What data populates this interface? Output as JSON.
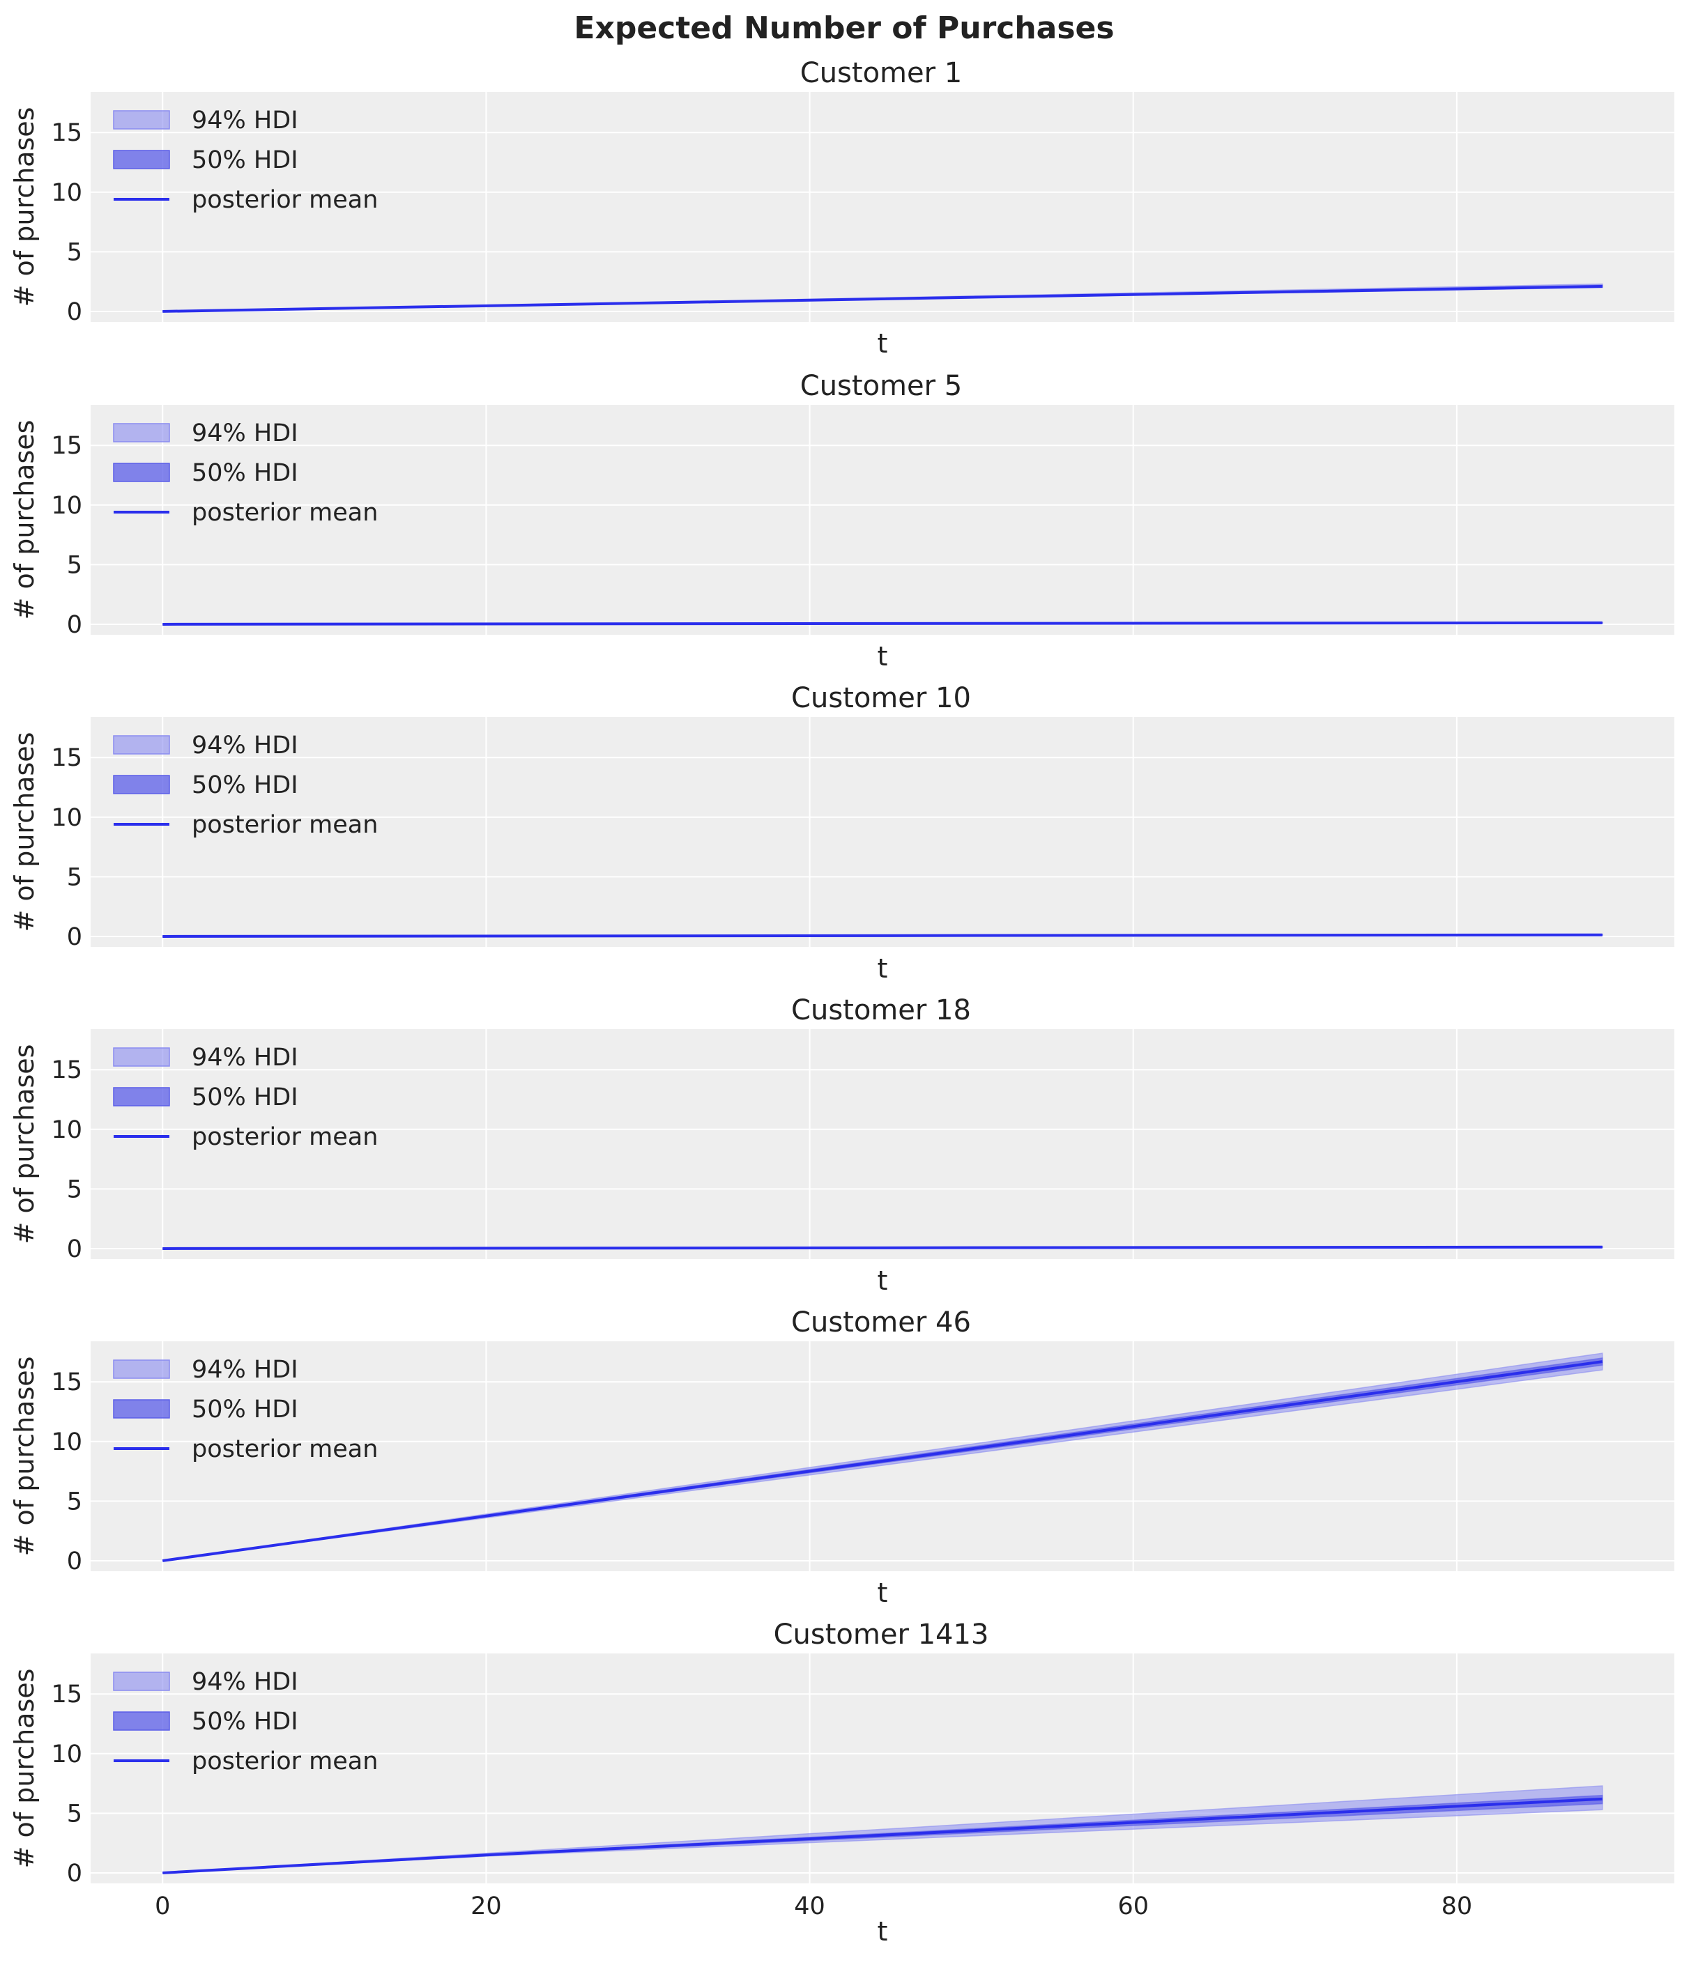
{
  "figure": {
    "title": "Expected Number of Purchases"
  },
  "legend_labels": {
    "hdi94": "94% HDI",
    "hdi50": "50% HDI",
    "mean": "posterior mean"
  },
  "colors": {
    "panel_bg": "#eeeeee",
    "grid": "#ffffff",
    "line": "#2a2eec",
    "band94": "#8a8cf0",
    "band50": "#5b5ee8"
  },
  "chart_data": [
    {
      "type": "line",
      "title": "Customer 1",
      "xlabel": "t",
      "ylabel": "# of purchases",
      "xlim": [
        -4.45,
        93.45
      ],
      "ylim": [
        -0.88,
        18.4
      ],
      "x_ticks": [
        0,
        20,
        40,
        60,
        80
      ],
      "y_ticks": [
        0,
        5,
        10,
        15
      ],
      "show_x_ticklabels": false,
      "legend": "upper left",
      "grid": true,
      "x": [
        0,
        89
      ],
      "mean": [
        0,
        2.1
      ],
      "hdi94": {
        "lower": [
          0,
          2.0
        ],
        "upper": [
          0,
          2.3
        ]
      },
      "hdi50": {
        "lower": [
          0,
          2.05
        ],
        "upper": [
          0,
          2.2
        ]
      }
    },
    {
      "type": "line",
      "title": "Customer 5",
      "xlabel": "t",
      "ylabel": "# of purchases",
      "xlim": [
        -4.45,
        93.45
      ],
      "ylim": [
        -0.88,
        18.4
      ],
      "x_ticks": [
        0,
        20,
        40,
        60,
        80
      ],
      "y_ticks": [
        0,
        5,
        10,
        15
      ],
      "show_x_ticklabels": false,
      "legend": "upper left",
      "grid": true,
      "x": [
        0,
        89
      ],
      "mean": [
        0,
        0.12
      ],
      "hdi94": {
        "lower": [
          0,
          0.1
        ],
        "upper": [
          0,
          0.15
        ]
      },
      "hdi50": {
        "lower": [
          0,
          0.11
        ],
        "upper": [
          0,
          0.13
        ]
      }
    },
    {
      "type": "line",
      "title": "Customer 10",
      "xlabel": "t",
      "ylabel": "# of purchases",
      "xlim": [
        -4.45,
        93.45
      ],
      "ylim": [
        -0.88,
        18.4
      ],
      "x_ticks": [
        0,
        20,
        40,
        60,
        80
      ],
      "y_ticks": [
        0,
        5,
        10,
        15
      ],
      "show_x_ticklabels": false,
      "legend": "upper left",
      "grid": true,
      "x": [
        0,
        89
      ],
      "mean": [
        0,
        0.13
      ],
      "hdi94": {
        "lower": [
          0,
          0.11
        ],
        "upper": [
          0,
          0.16
        ]
      },
      "hdi50": {
        "lower": [
          0,
          0.12
        ],
        "upper": [
          0,
          0.14
        ]
      }
    },
    {
      "type": "line",
      "title": "Customer 18",
      "xlabel": "t",
      "ylabel": "# of purchases",
      "xlim": [
        -4.45,
        93.45
      ],
      "ylim": [
        -0.88,
        18.4
      ],
      "x_ticks": [
        0,
        20,
        40,
        60,
        80
      ],
      "y_ticks": [
        0,
        5,
        10,
        15
      ],
      "show_x_ticklabels": false,
      "legend": "upper left",
      "grid": true,
      "x": [
        0,
        89
      ],
      "mean": [
        0,
        0.13
      ],
      "hdi94": {
        "lower": [
          0,
          0.11
        ],
        "upper": [
          0,
          0.16
        ]
      },
      "hdi50": {
        "lower": [
          0,
          0.12
        ],
        "upper": [
          0,
          0.14
        ]
      }
    },
    {
      "type": "line",
      "title": "Customer 46",
      "xlabel": "t",
      "ylabel": "# of purchases",
      "xlim": [
        -4.45,
        93.45
      ],
      "ylim": [
        -0.88,
        18.4
      ],
      "x_ticks": [
        0,
        20,
        40,
        60,
        80
      ],
      "y_ticks": [
        0,
        5,
        10,
        15
      ],
      "show_x_ticklabels": false,
      "legend": "upper left",
      "grid": true,
      "x": [
        0,
        89
      ],
      "mean": [
        0,
        16.7
      ],
      "hdi94": {
        "lower": [
          0,
          16.0
        ],
        "upper": [
          0,
          17.4
        ]
      },
      "hdi50": {
        "lower": [
          0,
          16.4
        ],
        "upper": [
          0,
          17.0
        ]
      }
    },
    {
      "type": "line",
      "title": "Customer 1413",
      "xlabel": "t",
      "ylabel": "# of purchases",
      "xlim": [
        -4.45,
        93.45
      ],
      "ylim": [
        -0.88,
        18.4
      ],
      "x_ticks": [
        0,
        20,
        40,
        60,
        80
      ],
      "y_ticks": [
        0,
        5,
        10,
        15
      ],
      "show_x_ticklabels": true,
      "legend": "upper left",
      "grid": true,
      "x": [
        0,
        20,
        89
      ],
      "mean": [
        0,
        1.5,
        6.2
      ],
      "hdi94": {
        "lower": [
          0,
          1.4,
          5.3
        ],
        "upper": [
          0,
          1.65,
          7.3
        ]
      },
      "hdi50": {
        "lower": [
          0,
          1.45,
          5.8
        ],
        "upper": [
          0,
          1.55,
          6.5
        ]
      }
    }
  ]
}
